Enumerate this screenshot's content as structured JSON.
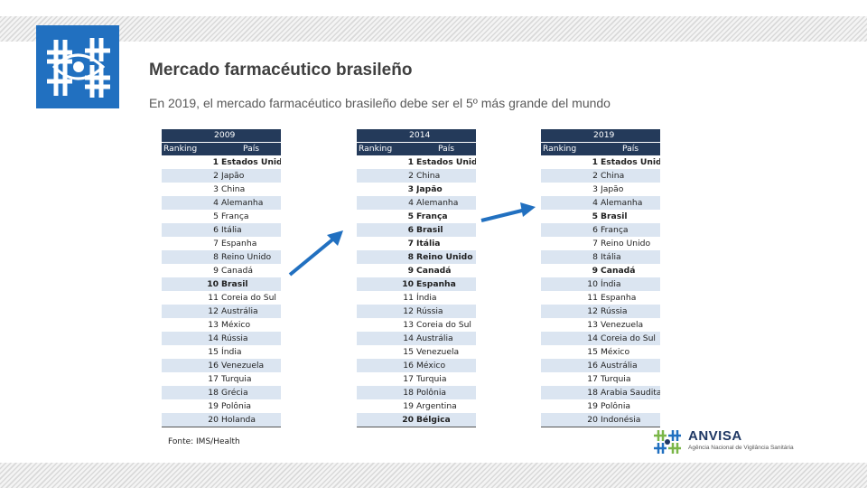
{
  "title": "Mercado farmacéutico brasileño",
  "subtitle": "En 2019, el mercado farmacéutico brasileño debe ser el 5º más grande del mundo",
  "source": "Fonte: IMS/Health",
  "brand": {
    "name": "ANVISA",
    "tagline": "Agência Nacional de Vigilância Sanitária",
    "colors": {
      "blue": "#2170c0",
      "green": "#7ab648",
      "navy": "#1f3864"
    }
  },
  "columns": {
    "ranking": "Ranking",
    "country": "País"
  },
  "tables": [
    {
      "year": "2009",
      "rows": [
        {
          "rank": "1",
          "country": "Estados Unidos",
          "bold": true
        },
        {
          "rank": "2",
          "country": "Japão"
        },
        {
          "rank": "3",
          "country": "China"
        },
        {
          "rank": "4",
          "country": "Alemanha"
        },
        {
          "rank": "5",
          "country": "França"
        },
        {
          "rank": "6",
          "country": "Itália"
        },
        {
          "rank": "7",
          "country": "Espanha"
        },
        {
          "rank": "8",
          "country": "Reino Unido"
        },
        {
          "rank": "9",
          "country": "Canadá"
        },
        {
          "rank": "10",
          "country": "Brasil",
          "bold": true
        },
        {
          "rank": "11",
          "country": "Coreia do Sul"
        },
        {
          "rank": "12",
          "country": "Austrália"
        },
        {
          "rank": "13",
          "country": "México"
        },
        {
          "rank": "14",
          "country": "Rússia"
        },
        {
          "rank": "15",
          "country": "Índia"
        },
        {
          "rank": "16",
          "country": "Venezuela"
        },
        {
          "rank": "17",
          "country": "Turquia"
        },
        {
          "rank": "18",
          "country": "Grécia"
        },
        {
          "rank": "19",
          "country": "Polônia"
        },
        {
          "rank": "20",
          "country": "Holanda"
        }
      ]
    },
    {
      "year": "2014",
      "rows": [
        {
          "rank": "1",
          "country": "Estados Unidos",
          "bold": true
        },
        {
          "rank": "2",
          "country": "China"
        },
        {
          "rank": "3",
          "country": "Japão",
          "bold": true
        },
        {
          "rank": "4",
          "country": "Alemanha"
        },
        {
          "rank": "5",
          "country": "França",
          "bold": true
        },
        {
          "rank": "6",
          "country": "Brasil",
          "bold": true
        },
        {
          "rank": "7",
          "country": "Itália",
          "bold": true
        },
        {
          "rank": "8",
          "country": "Reino Unido",
          "bold": true
        },
        {
          "rank": "9",
          "country": "Canadá",
          "bold": true
        },
        {
          "rank": "10",
          "country": "Espanha",
          "bold": true
        },
        {
          "rank": "11",
          "country": "Índia"
        },
        {
          "rank": "12",
          "country": "Rússia"
        },
        {
          "rank": "13",
          "country": "Coreia do Sul"
        },
        {
          "rank": "14",
          "country": "Austrália"
        },
        {
          "rank": "15",
          "country": "Venezuela"
        },
        {
          "rank": "16",
          "country": "México"
        },
        {
          "rank": "17",
          "country": "Turquia"
        },
        {
          "rank": "18",
          "country": "Polônia"
        },
        {
          "rank": "19",
          "country": "Argentina"
        },
        {
          "rank": "20",
          "country": "Bélgica",
          "bold": true
        }
      ]
    },
    {
      "year": "2019",
      "rows": [
        {
          "rank": "1",
          "country": "Estados Unidos",
          "bold": true
        },
        {
          "rank": "2",
          "country": "China"
        },
        {
          "rank": "3",
          "country": "Japão"
        },
        {
          "rank": "4",
          "country": "Alemanha"
        },
        {
          "rank": "5",
          "country": "Brasil",
          "bold": true
        },
        {
          "rank": "6",
          "country": "França"
        },
        {
          "rank": "7",
          "country": "Reino Unido"
        },
        {
          "rank": "8",
          "country": "Itália"
        },
        {
          "rank": "9",
          "country": "Canadá",
          "bold": true
        },
        {
          "rank": "10",
          "country": "Índia"
        },
        {
          "rank": "11",
          "country": "Espanha"
        },
        {
          "rank": "12",
          "country": "Rússia"
        },
        {
          "rank": "13",
          "country": "Venezuela"
        },
        {
          "rank": "14",
          "country": "Coreia do Sul"
        },
        {
          "rank": "15",
          "country": "México"
        },
        {
          "rank": "16",
          "country": "Austrália"
        },
        {
          "rank": "17",
          "country": "Turquia"
        },
        {
          "rank": "18",
          "country": "Arabia Saudita"
        },
        {
          "rank": "19",
          "country": "Polônia"
        },
        {
          "rank": "20",
          "country": "Indonésia"
        }
      ]
    }
  ]
}
